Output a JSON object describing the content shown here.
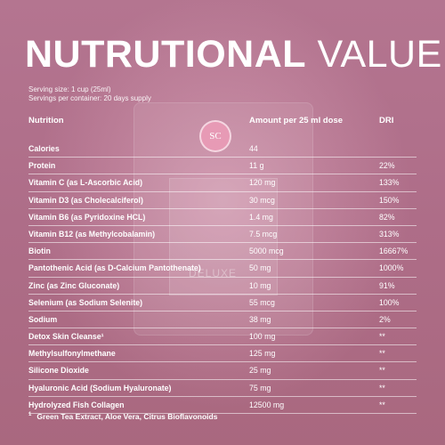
{
  "title": {
    "bold": "NUTRUTIONAL",
    "light": "VALUE"
  },
  "serving_size": "Serving size: 1 cup (25ml)",
  "servings_per_container": "Servings per container: 20 days supply",
  "columns": {
    "nutrition": "Nutrition",
    "amount": "Amount per 25 ml dose",
    "dri": "DRI"
  },
  "logo_text": "SC",
  "brand_text": "DELUXE",
  "rows": [
    {
      "name": "Calories",
      "amount": "44",
      "dri": ""
    },
    {
      "name": "Protein",
      "amount": "11 g",
      "dri": "22%"
    },
    {
      "name": "Vitamin C (as L-Ascorbic Acid)",
      "amount": "120 mg",
      "dri": "133%"
    },
    {
      "name": "Vitamin D3 (as Cholecalciferol)",
      "amount": "30 mcg",
      "dri": "150%"
    },
    {
      "name": "Vitamin B6 (as Pyridoxine HCL)",
      "amount": "1.4 mg",
      "dri": "82%"
    },
    {
      "name": "Vitamin B12 (as Methylcobalamin)",
      "amount": "7.5 mcg",
      "dri": "313%"
    },
    {
      "name": "Biotin",
      "amount": "5000 mcg",
      "dri": "16667%"
    },
    {
      "name": "Pantothenic Acid (as D-Calcium Pantothenate)",
      "amount": "50 mg",
      "dri": "1000%"
    },
    {
      "name": "Zinc (as Zinc Gluconate)",
      "amount": "10 mg",
      "dri": "91%"
    },
    {
      "name": "Selenium (as Sodium Selenite)",
      "amount": "55 mcg",
      "dri": "100%"
    },
    {
      "name": "Sodium",
      "amount": "38 mg",
      "dri": "2%"
    },
    {
      "name": "Detox Skin Cleanse¹",
      "amount": "100 mg",
      "dri": "**"
    },
    {
      "name": "Methylsulfonylmethane",
      "amount": "125 mg",
      "dri": "**"
    },
    {
      "name": "Silicone Dioxide",
      "amount": "25 mg",
      "dri": "**"
    },
    {
      "name": "Hyaluronic Acid (Sodium Hyaluronate)",
      "amount": "75 mg",
      "dri": "**"
    },
    {
      "name": "Hydrolyzed Fish Collagen",
      "amount": "12500 mg",
      "dri": "**"
    }
  ],
  "footnote": {
    "mark": "1",
    "text": "Green Tea Extract, Aloe Vera, Citrus Bioflavonoids"
  }
}
